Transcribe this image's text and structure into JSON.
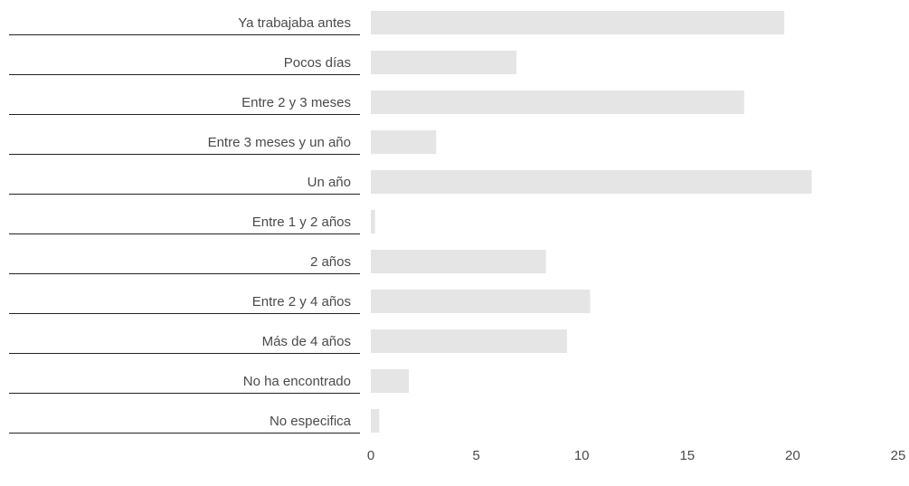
{
  "chart_data": {
    "type": "bar",
    "orientation": "horizontal",
    "categories": [
      "Ya trabajaba antes",
      "Pocos días",
      "Entre 2 y 3 meses",
      "Entre 3 meses y un año",
      "Un año",
      "Entre 1 y 2 años",
      "2 años",
      "Entre 2 y 4 años",
      "Más de 4 años",
      "No ha encontrado",
      "No especifica"
    ],
    "values": [
      19.6,
      6.9,
      17.7,
      3.1,
      20.9,
      0.2,
      8.3,
      10.4,
      9.3,
      1.8,
      0.4
    ],
    "xlim": [
      0,
      25
    ],
    "xticks": [
      "0",
      "5",
      "10",
      "15",
      "20",
      "25"
    ],
    "title": "",
    "xlabel": "",
    "ylabel": "",
    "grid": false,
    "legend": "none",
    "colors": {
      "bar": "#e5e5e5",
      "label": "#4a4a4a",
      "rule": "#222222"
    }
  }
}
